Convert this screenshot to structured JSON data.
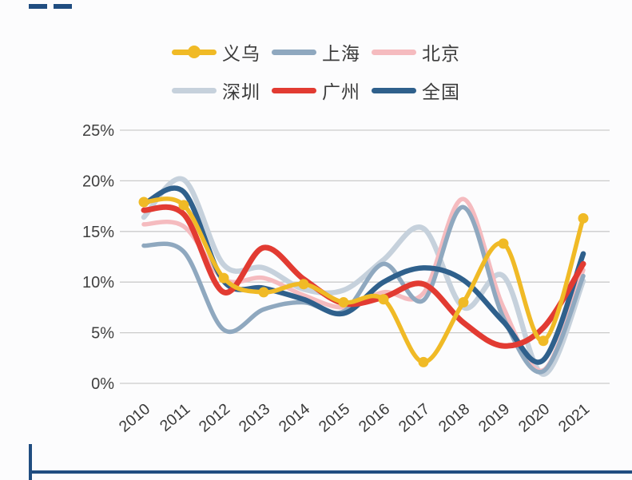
{
  "page": {
    "background": "#fcfcfd",
    "accent_color": "#204d80"
  },
  "chart_data": {
    "type": "line",
    "title": "",
    "xlabel": "",
    "ylabel": "",
    "x_categories": [
      "2010",
      "2011",
      "2012",
      "2013",
      "2014",
      "2015",
      "2016",
      "2017",
      "2018",
      "2019",
      "2020",
      "2021"
    ],
    "y_ticks": [
      "0%",
      "5%",
      "10%",
      "15%",
      "20%",
      "25%"
    ],
    "ylim": [
      0,
      25
    ],
    "grid": "horizontal",
    "gridline_color": "#cbcbcb",
    "legend_position": "top",
    "legend_rows": [
      [
        0,
        1,
        2
      ],
      [
        3,
        4,
        5
      ]
    ],
    "draw_order_indices": [
      3,
      2,
      1,
      5,
      4,
      0
    ],
    "series": [
      {
        "name": "义乌",
        "color": "#F0BA26",
        "marker": true,
        "line_width": 5.5,
        "values": [
          17.9,
          17.6,
          10.4,
          9.0,
          9.8,
          8.0,
          8.3,
          2.1,
          8.0,
          13.8,
          4.2,
          16.3
        ]
      },
      {
        "name": "上海",
        "color": "#8FA8BF",
        "marker": false,
        "line_width": 5.5,
        "values": [
          13.6,
          13.0,
          5.3,
          7.3,
          8.0,
          7.1,
          11.8,
          8.2,
          17.4,
          6.5,
          1.2,
          10.6
        ]
      },
      {
        "name": "北京",
        "color": "#F5BBBF",
        "marker": false,
        "line_width": 5.5,
        "values": [
          15.7,
          15.5,
          10.3,
          10.4,
          8.7,
          7.5,
          9.0,
          8.9,
          18.2,
          7.5,
          1.3,
          11.2
        ]
      },
      {
        "name": "深圳",
        "color": "#C6D1DC",
        "marker": false,
        "line_width": 6.5,
        "values": [
          16.4,
          20.1,
          11.7,
          11.4,
          9.3,
          9.2,
          12.2,
          15.3,
          7.5,
          10.6,
          0.9,
          10.1
        ]
      },
      {
        "name": "广州",
        "color": "#E23B32",
        "marker": false,
        "line_width": 7,
        "values": [
          17.1,
          16.7,
          9.0,
          13.4,
          10.3,
          7.9,
          8.5,
          9.8,
          6.0,
          3.7,
          5.5,
          11.8
        ]
      },
      {
        "name": "全国",
        "color": "#2F608C",
        "marker": false,
        "line_width": 6.5,
        "values": [
          17.7,
          18.9,
          10.1,
          9.4,
          8.3,
          6.9,
          10.0,
          11.4,
          10.2,
          6.1,
          2.3,
          12.8
        ]
      }
    ]
  }
}
